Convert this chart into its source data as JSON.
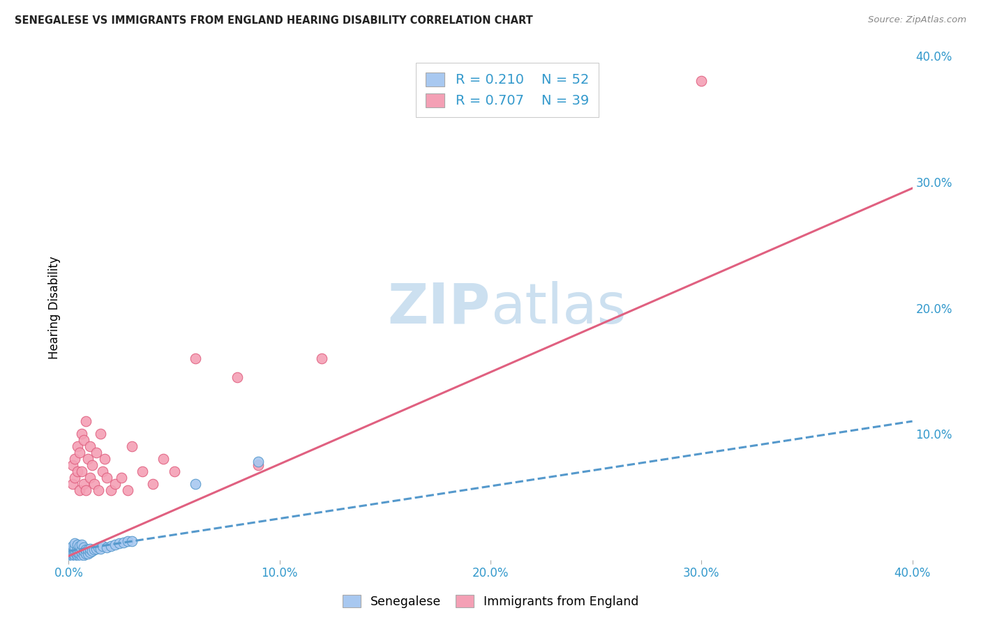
{
  "title": "SENEGALESE VS IMMIGRANTS FROM ENGLAND HEARING DISABILITY CORRELATION CHART",
  "source": "Source: ZipAtlas.com",
  "ylabel": "Hearing Disability",
  "xlim": [
    0.0,
    0.4
  ],
  "ylim": [
    0.0,
    0.4
  ],
  "xtick_vals": [
    0.0,
    0.1,
    0.2,
    0.3,
    0.4
  ],
  "xtick_labels": [
    "0.0%",
    "10.0%",
    "20.0%",
    "30.0%",
    "40.0%"
  ],
  "ytick_vals": [
    0.0,
    0.1,
    0.2,
    0.3,
    0.4
  ],
  "ytick_labels": [
    "",
    "10.0%",
    "20.0%",
    "30.0%",
    "40.0%"
  ],
  "legend_label1": "Senegalese",
  "legend_label2": "Immigrants from England",
  "R1": 0.21,
  "N1": 52,
  "R2": 0.707,
  "N2": 39,
  "color1": "#a8c8f0",
  "color2": "#f4a0b5",
  "line1_color": "#5599cc",
  "line2_color": "#e06080",
  "watermark_color": "#cce0f0",
  "blue_line_x": [
    0.0,
    0.4
  ],
  "blue_line_y": [
    0.007,
    0.11
  ],
  "pink_line_x": [
    0.0,
    0.4
  ],
  "pink_line_y": [
    0.003,
    0.295
  ],
  "blue_scatter_x": [
    0.001,
    0.001,
    0.001,
    0.002,
    0.002,
    0.002,
    0.002,
    0.002,
    0.002,
    0.003,
    0.003,
    0.003,
    0.003,
    0.003,
    0.003,
    0.004,
    0.004,
    0.004,
    0.004,
    0.004,
    0.005,
    0.005,
    0.005,
    0.005,
    0.006,
    0.006,
    0.006,
    0.006,
    0.007,
    0.007,
    0.007,
    0.008,
    0.008,
    0.009,
    0.009,
    0.01,
    0.01,
    0.011,
    0.012,
    0.013,
    0.014,
    0.015,
    0.016,
    0.018,
    0.02,
    0.022,
    0.024,
    0.026,
    0.028,
    0.03,
    0.06,
    0.09
  ],
  "blue_scatter_y": [
    0.002,
    0.003,
    0.005,
    0.001,
    0.003,
    0.005,
    0.007,
    0.009,
    0.011,
    0.002,
    0.004,
    0.006,
    0.008,
    0.01,
    0.013,
    0.002,
    0.004,
    0.006,
    0.009,
    0.012,
    0.003,
    0.005,
    0.008,
    0.011,
    0.003,
    0.006,
    0.009,
    0.012,
    0.004,
    0.007,
    0.01,
    0.005,
    0.008,
    0.005,
    0.008,
    0.006,
    0.009,
    0.007,
    0.008,
    0.009,
    0.01,
    0.009,
    0.011,
    0.01,
    0.011,
    0.012,
    0.013,
    0.014,
    0.015,
    0.015,
    0.06,
    0.078
  ],
  "pink_scatter_x": [
    0.002,
    0.002,
    0.003,
    0.003,
    0.004,
    0.004,
    0.005,
    0.005,
    0.006,
    0.006,
    0.007,
    0.007,
    0.008,
    0.008,
    0.009,
    0.01,
    0.01,
    0.011,
    0.012,
    0.013,
    0.014,
    0.015,
    0.016,
    0.017,
    0.018,
    0.02,
    0.022,
    0.025,
    0.028,
    0.03,
    0.035,
    0.04,
    0.045,
    0.05,
    0.06,
    0.08,
    0.09,
    0.12,
    0.3
  ],
  "pink_scatter_y": [
    0.06,
    0.075,
    0.065,
    0.08,
    0.07,
    0.09,
    0.055,
    0.085,
    0.07,
    0.1,
    0.06,
    0.095,
    0.055,
    0.11,
    0.08,
    0.065,
    0.09,
    0.075,
    0.06,
    0.085,
    0.055,
    0.1,
    0.07,
    0.08,
    0.065,
    0.055,
    0.06,
    0.065,
    0.055,
    0.09,
    0.07,
    0.06,
    0.08,
    0.07,
    0.16,
    0.145,
    0.075,
    0.16,
    0.38
  ]
}
